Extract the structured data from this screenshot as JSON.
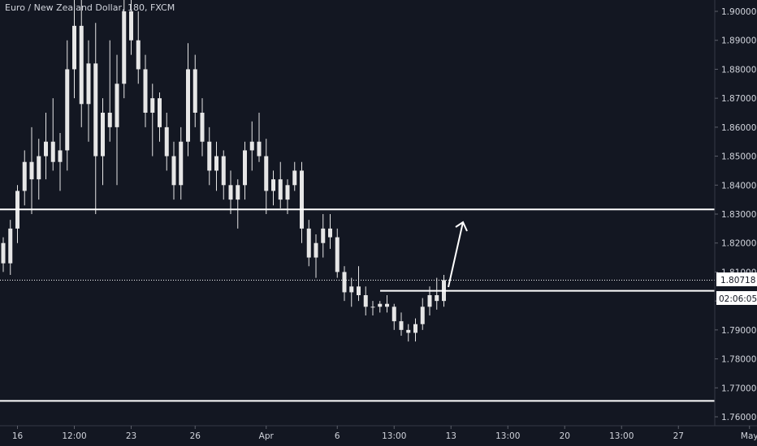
{
  "header": {
    "symbol_title": "Euro / New Zealand Dollar, 180, FXCM"
  },
  "price_tag": {
    "price": "1.80718",
    "countdown": "02:06:05"
  },
  "colors": {
    "background": "#131722",
    "candle": "#e6e6e6",
    "line": "#ffffff",
    "text": "#d1d4dc",
    "tag_bg": "#ffffff",
    "tag_text": "#131722"
  },
  "chart_data": {
    "type": "candlestick",
    "title": "Euro / New Zealand Dollar, 180, FXCM",
    "ylim": [
      1.755,
      1.905
    ],
    "y_ticks": [
      "1.90000",
      "1.89000",
      "1.88000",
      "1.87000",
      "1.86000",
      "1.85000",
      "1.84000",
      "1.83000",
      "1.82000",
      "1.81000",
      "1.80000",
      "1.79000",
      "1.78000",
      "1.77000",
      "1.76000"
    ],
    "y_tick_values": [
      1.9,
      1.89,
      1.88,
      1.87,
      1.86,
      1.85,
      1.84,
      1.83,
      1.82,
      1.81,
      1.8,
      1.79,
      1.78,
      1.77,
      1.76
    ],
    "x_ticks": [
      "16",
      "12:00",
      "23",
      "26",
      "Apr",
      "6",
      "13:00",
      "13",
      "13:00",
      "20",
      "13:00",
      "27",
      "May"
    ],
    "x_tick_bar_index": [
      2,
      10,
      18,
      27,
      37,
      47,
      55,
      63,
      71,
      79,
      87,
      95,
      105
    ],
    "current_price": 1.80718,
    "horizontal_levels": [
      1.8316,
      1.8035,
      1.7655
    ],
    "candles": [
      [
        1.82,
        1.822,
        1.81,
        1.813
      ],
      [
        1.813,
        1.828,
        1.809,
        1.825
      ],
      [
        1.825,
        1.84,
        1.82,
        1.838
      ],
      [
        1.838,
        1.852,
        1.833,
        1.848
      ],
      [
        1.848,
        1.86,
        1.83,
        1.842
      ],
      [
        1.842,
        1.856,
        1.835,
        1.85
      ],
      [
        1.85,
        1.865,
        1.842,
        1.855
      ],
      [
        1.855,
        1.87,
        1.845,
        1.848
      ],
      [
        1.848,
        1.858,
        1.838,
        1.852
      ],
      [
        1.852,
        1.89,
        1.845,
        1.88
      ],
      [
        1.88,
        1.905,
        1.87,
        1.895
      ],
      [
        1.895,
        1.908,
        1.86,
        1.868
      ],
      [
        1.868,
        1.89,
        1.855,
        1.882
      ],
      [
        1.882,
        1.896,
        1.83,
        1.85
      ],
      [
        1.85,
        1.87,
        1.84,
        1.865
      ],
      [
        1.865,
        1.89,
        1.855,
        1.86
      ],
      [
        1.86,
        1.885,
        1.84,
        1.875
      ],
      [
        1.875,
        1.908,
        1.87,
        1.9
      ],
      [
        1.9,
        1.905,
        1.885,
        1.89
      ],
      [
        1.89,
        1.9,
        1.875,
        1.88
      ],
      [
        1.88,
        1.885,
        1.86,
        1.865
      ],
      [
        1.865,
        1.875,
        1.85,
        1.87
      ],
      [
        1.87,
        1.872,
        1.855,
        1.86
      ],
      [
        1.86,
        1.865,
        1.845,
        1.85
      ],
      [
        1.85,
        1.855,
        1.835,
        1.84
      ],
      [
        1.84,
        1.86,
        1.835,
        1.855
      ],
      [
        1.855,
        1.889,
        1.85,
        1.88
      ],
      [
        1.88,
        1.885,
        1.86,
        1.865
      ],
      [
        1.865,
        1.87,
        1.85,
        1.855
      ],
      [
        1.855,
        1.86,
        1.84,
        1.845
      ],
      [
        1.845,
        1.855,
        1.838,
        1.85
      ],
      [
        1.85,
        1.852,
        1.835,
        1.84
      ],
      [
        1.84,
        1.845,
        1.83,
        1.835
      ],
      [
        1.835,
        1.842,
        1.825,
        1.84
      ],
      [
        1.84,
        1.855,
        1.835,
        1.852
      ],
      [
        1.852,
        1.862,
        1.845,
        1.855
      ],
      [
        1.855,
        1.865,
        1.848,
        1.85
      ],
      [
        1.85,
        1.856,
        1.83,
        1.838
      ],
      [
        1.838,
        1.845,
        1.833,
        1.842
      ],
      [
        1.842,
        1.848,
        1.832,
        1.835
      ],
      [
        1.835,
        1.842,
        1.83,
        1.84
      ],
      [
        1.84,
        1.848,
        1.838,
        1.845
      ],
      [
        1.845,
        1.848,
        1.82,
        1.825
      ],
      [
        1.825,
        1.828,
        1.812,
        1.815
      ],
      [
        1.815,
        1.823,
        1.808,
        1.82
      ],
      [
        1.82,
        1.83,
        1.815,
        1.825
      ],
      [
        1.825,
        1.83,
        1.818,
        1.822
      ],
      [
        1.822,
        1.825,
        1.808,
        1.81
      ],
      [
        1.81,
        1.812,
        1.8,
        1.803
      ],
      [
        1.803,
        1.808,
        1.798,
        1.805
      ],
      [
        1.805,
        1.812,
        1.8,
        1.802
      ],
      [
        1.802,
        1.805,
        1.795,
        1.798
      ],
      [
        1.798,
        1.8,
        1.795,
        1.798
      ],
      [
        1.798,
        1.8,
        1.796,
        1.799
      ],
      [
        1.799,
        1.802,
        1.796,
        1.798
      ],
      [
        1.798,
        1.799,
        1.79,
        1.793
      ],
      [
        1.793,
        1.796,
        1.788,
        1.79
      ],
      [
        1.79,
        1.792,
        1.786,
        1.789
      ],
      [
        1.789,
        1.794,
        1.786,
        1.792
      ],
      [
        1.792,
        1.801,
        1.79,
        1.798
      ],
      [
        1.798,
        1.805,
        1.795,
        1.802
      ],
      [
        1.802,
        1.808,
        1.797,
        1.8
      ],
      [
        1.8,
        1.809,
        1.798,
        1.8072
      ]
    ]
  }
}
